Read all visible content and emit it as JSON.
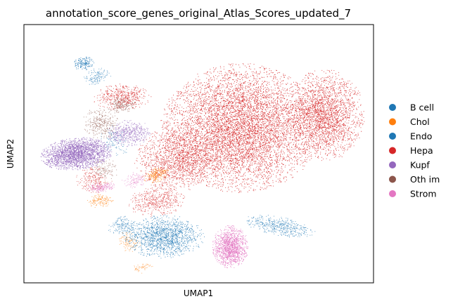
{
  "chart_data": {
    "type": "scatter",
    "title": "annotation_score_genes_original_Atlas_Scores_updated_7",
    "xlabel": "UMAP1",
    "ylabel": "UMAP2",
    "xticks": [],
    "yticks": [],
    "xlim": [
      0,
      100
    ],
    "ylim": [
      0,
      100
    ],
    "grid": false,
    "legend_position": "right",
    "series": [
      {
        "name": "B cell",
        "color": "#1f77b4",
        "clusters": [
          [
            17,
            85,
            3,
            2.5,
            0.35,
            0.9,
            160
          ],
          [
            21,
            80,
            4,
            3,
            0.5,
            0.4,
            140
          ]
        ]
      },
      {
        "name": "Chol",
        "color": "#ff7f0e",
        "clusters": [
          [
            38,
            42,
            4,
            2.5,
            0.6,
            0.8,
            220
          ],
          [
            22,
            32,
            4,
            2.5,
            0.3,
            0.5,
            150
          ],
          [
            30,
            16,
            3,
            4,
            0.3,
            0.3,
            120
          ],
          [
            34,
            6,
            3,
            2,
            0.3,
            0.2,
            60
          ]
        ]
      },
      {
        "name": "Endo",
        "color": "#1f77b4",
        "clusters": [
          [
            40,
            18,
            11,
            8,
            0,
            0.8,
            1400
          ],
          [
            28,
            22,
            4,
            4,
            0.2,
            0.5,
            160
          ],
          [
            73,
            22,
            10,
            3.5,
            -0.25,
            0.6,
            450
          ],
          [
            26,
            55,
            4,
            6,
            0.2,
            0.4,
            120
          ]
        ]
      },
      {
        "name": "Hepa",
        "color": "#d62728",
        "clusters": [
          [
            62,
            60,
            22,
            24,
            0,
            1,
            6500
          ],
          [
            86,
            65,
            11,
            17,
            0,
            0.9,
            2400
          ],
          [
            44,
            48,
            12,
            12,
            0.2,
            0.8,
            1500
          ],
          [
            28,
            72,
            8,
            5,
            0.1,
            0.7,
            500
          ],
          [
            38,
            32,
            8,
            6,
            0.3,
            0.6,
            500
          ],
          [
            20,
            40,
            5,
            5,
            0.1,
            0.4,
            250
          ]
        ]
      },
      {
        "name": "Kupf",
        "color": "#9467bd",
        "clusters": [
          [
            15,
            50,
            10,
            6,
            0.15,
            1,
            2200
          ],
          [
            30,
            58,
            6,
            5,
            0.2,
            0.6,
            500
          ]
        ]
      },
      {
        "name": "Oth im",
        "color": "#8c564b",
        "clusters": [
          [
            22,
            62,
            5,
            6,
            0.1,
            0.5,
            300
          ],
          [
            28,
            69,
            4,
            3,
            0.1,
            0.5,
            180
          ],
          [
            23,
            44,
            4,
            4,
            0.2,
            0.35,
            120
          ]
        ]
      },
      {
        "name": "Strom",
        "color": "#e377c2",
        "clusters": [
          [
            59,
            14,
            5,
            8,
            0,
            1,
            1300
          ],
          [
            22,
            37,
            4,
            2,
            0.2,
            0.6,
            180
          ],
          [
            32,
            40,
            4,
            3,
            0.2,
            0.4,
            120
          ]
        ]
      }
    ]
  }
}
